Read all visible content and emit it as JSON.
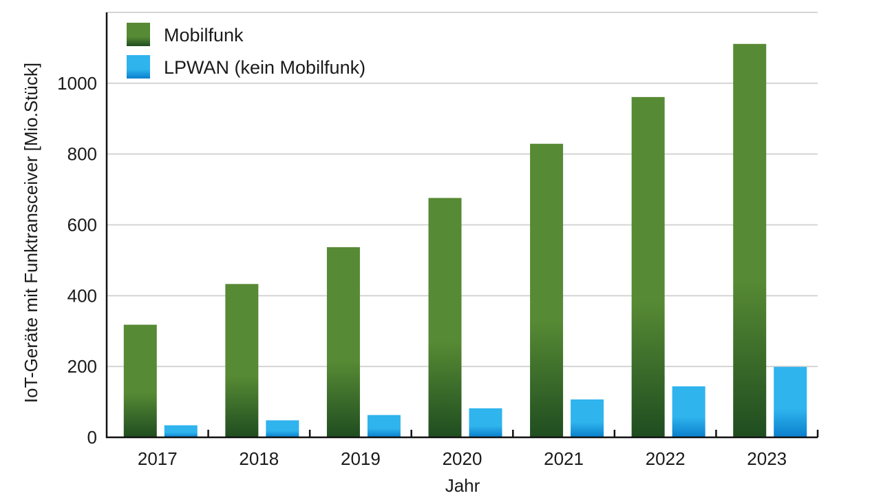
{
  "chart_data": {
    "type": "bar",
    "categories": [
      "2017",
      "2018",
      "2019",
      "2020",
      "2021",
      "2022",
      "2023"
    ],
    "series": [
      {
        "name": "Mobilfunk",
        "values": [
          318,
          433,
          537,
          676,
          829,
          961,
          1111
        ],
        "color_top": "#578a34",
        "color_bottom": "#1f4d20"
      },
      {
        "name": "LPWAN (kein Mobilfunk)",
        "values": [
          34,
          48,
          63,
          82,
          107,
          144,
          199
        ],
        "color_top": "#2fb4ee",
        "color_bottom": "#0a7fcc"
      }
    ],
    "xlabel": "Jahr",
    "ylabel": "IoT-Geräte mit Funktransceiver [Mio.Stück]",
    "ylim": [
      0,
      1200
    ],
    "yticks": [
      0,
      200,
      400,
      600,
      800,
      1000
    ],
    "grid": true,
    "legend_position": "top-left",
    "colors": {
      "grid": "#d4d4d4",
      "axis": "#111111"
    }
  }
}
